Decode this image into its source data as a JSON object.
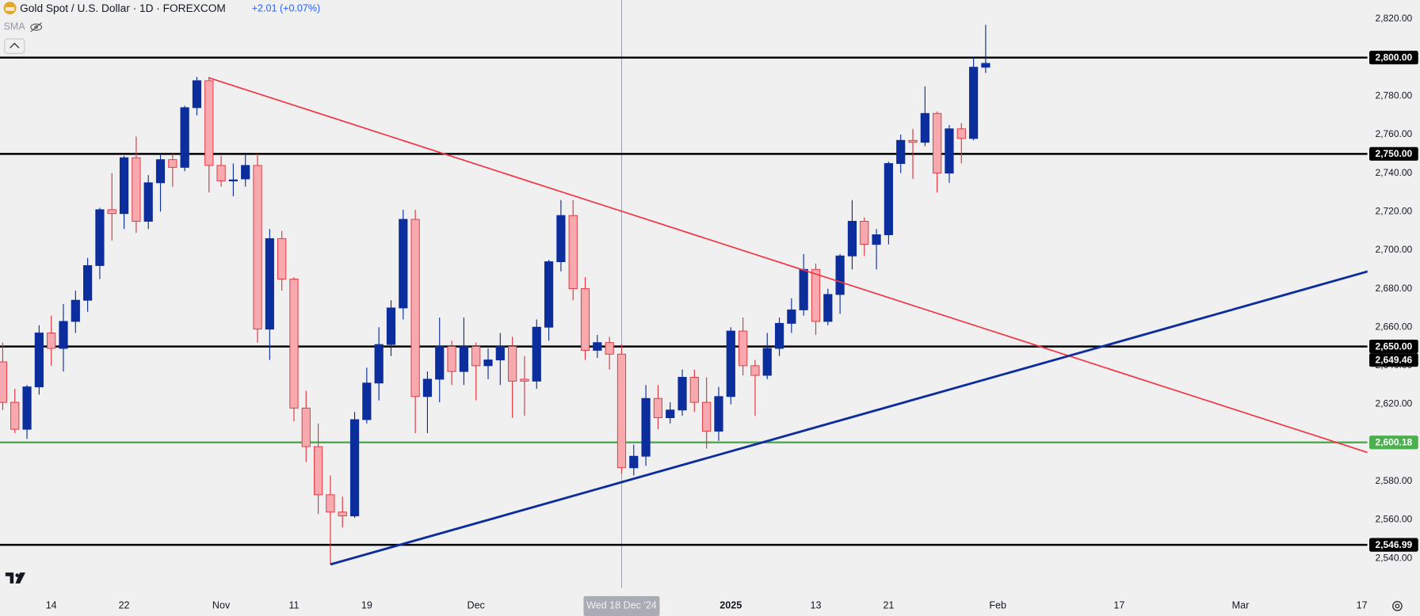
{
  "chart_data": {
    "type": "candlestick",
    "title": "Gold Spot / U.S. Dollar · 1D · FOREXCOM",
    "change_label": "+2.01 (+0.07%)",
    "indicator_label": "SMA",
    "up_color": "#0c2d9c",
    "down_color": "#f7a9ae",
    "down_border": "#e0323e",
    "x": [
      "2024-10-08",
      "2024-10-09",
      "2024-10-10",
      "2024-10-11",
      "2024-10-14",
      "2024-10-15",
      "2024-10-16",
      "2024-10-17",
      "2024-10-18",
      "2024-10-21",
      "2024-10-22",
      "2024-10-23",
      "2024-10-24",
      "2024-10-25",
      "2024-10-28",
      "2024-10-29",
      "2024-10-30",
      "2024-10-31",
      "2024-11-01",
      "2024-11-04",
      "2024-11-05",
      "2024-11-06",
      "2024-11-07",
      "2024-11-08",
      "2024-11-11",
      "2024-11-12",
      "2024-11-13",
      "2024-11-14",
      "2024-11-15",
      "2024-11-18",
      "2024-11-19",
      "2024-11-20",
      "2024-11-21",
      "2024-11-22",
      "2024-11-25",
      "2024-11-26",
      "2024-11-27",
      "2024-11-28",
      "2024-11-29",
      "2024-12-02",
      "2024-12-03",
      "2024-12-04",
      "2024-12-05",
      "2024-12-06",
      "2024-12-09",
      "2024-12-10",
      "2024-12-11",
      "2024-12-12",
      "2024-12-13",
      "2024-12-16",
      "2024-12-17",
      "2024-12-18",
      "2024-12-19",
      "2024-12-20",
      "2024-12-23",
      "2024-12-24",
      "2024-12-26",
      "2024-12-27",
      "2024-12-30",
      "2024-12-31",
      "2025-01-02",
      "2025-01-03",
      "2025-01-06",
      "2025-01-07",
      "2025-01-08",
      "2025-01-09",
      "2025-01-10",
      "2025-01-13",
      "2025-01-14",
      "2025-01-15",
      "2025-01-16",
      "2025-01-17",
      "2025-01-20",
      "2025-01-21",
      "2025-01-22",
      "2025-01-23",
      "2025-01-24",
      "2025-01-27",
      "2025-01-28",
      "2025-01-29",
      "2025-01-30",
      "2025-01-31"
    ],
    "open": [
      2642,
      2621,
      2607,
      2629,
      2657,
      2649,
      2663,
      2674,
      2692,
      2721,
      2719,
      2748,
      2715,
      2735,
      2747,
      2743,
      2774,
      2788,
      2744,
      2736,
      2737,
      2744,
      2659,
      2706,
      2685,
      2618,
      2598,
      2573,
      2564,
      2562,
      2612,
      2631,
      2651,
      2670,
      2716,
      2624,
      2633,
      2650,
      2637,
      2650,
      2640,
      2643,
      2650,
      2633,
      2632,
      2660,
      2694,
      2718,
      2680,
      2648,
      2652,
      2646,
      2587,
      2593,
      2623,
      2613,
      2617,
      2634,
      2621,
      2606,
      2624,
      2658,
      2640,
      2635,
      2649,
      2662,
      2669,
      2690,
      2663,
      2677,
      2697,
      2715,
      2703,
      2708,
      2745,
      2757,
      2756,
      2771,
      2740,
      2763,
      2758,
      2795
    ],
    "high": [
      2652,
      2628,
      2630,
      2661,
      2666,
      2672,
      2679,
      2696,
      2722,
      2740,
      2749,
      2759,
      2739,
      2750,
      2750,
      2775,
      2790,
      2790,
      2749,
      2745,
      2750,
      2750,
      2711,
      2710,
      2686,
      2627,
      2610,
      2583,
      2572,
      2616,
      2639,
      2660,
      2674,
      2721,
      2721,
      2637,
      2665,
      2653,
      2665,
      2652,
      2649,
      2657,
      2655,
      2645,
      2664,
      2695,
      2726,
      2726,
      2686,
      2656,
      2655,
      2651,
      2599,
      2630,
      2630,
      2621,
      2638,
      2638,
      2634,
      2629,
      2660,
      2665,
      2643,
      2657,
      2665,
      2675,
      2698,
      2693,
      2680,
      2698,
      2726,
      2717,
      2711,
      2746,
      2760,
      2763,
      2785,
      2772,
      2765,
      2766,
      2800,
      2817
    ],
    "low": [
      2617,
      2605,
      2602,
      2625,
      2640,
      2637,
      2657,
      2668,
      2685,
      2705,
      2711,
      2709,
      2711,
      2720,
      2733,
      2741,
      2770,
      2730,
      2733,
      2728,
      2733,
      2652,
      2643,
      2679,
      2611,
      2590,
      2563,
      2537,
      2556,
      2561,
      2610,
      2622,
      2645,
      2664,
      2605,
      2605,
      2621,
      2630,
      2630,
      2622,
      2633,
      2630,
      2613,
      2614,
      2628,
      2653,
      2689,
      2674,
      2643,
      2644,
      2638,
      2584,
      2583,
      2588,
      2607,
      2610,
      2614,
      2616,
      2597,
      2601,
      2620,
      2635,
      2614,
      2633,
      2645,
      2657,
      2666,
      2656,
      2661,
      2667,
      2690,
      2697,
      2690,
      2703,
      2740,
      2737,
      2754,
      2730,
      2735,
      2745,
      2757,
      2792
    ],
    "close": [
      2621,
      2607,
      2629,
      2657,
      2649,
      2663,
      2674,
      2692,
      2721,
      2719,
      2748,
      2715,
      2735,
      2747,
      2743,
      2774,
      2788,
      2744,
      2736,
      2736.5,
      2744,
      2659,
      2706,
      2685,
      2618,
      2598,
      2573,
      2564,
      2562,
      2612,
      2631,
      2651,
      2670,
      2716,
      2624,
      2633,
      2650,
      2637,
      2650,
      2640,
      2643,
      2650,
      2632,
      2632,
      2660,
      2694,
      2718,
      2680,
      2648,
      2652,
      2646,
      2587,
      2593,
      2623,
      2613,
      2617,
      2634,
      2621,
      2606,
      2624,
      2658,
      2640,
      2635,
      2649,
      2662,
      2669,
      2690,
      2663,
      2677,
      2697,
      2715,
      2703,
      2708,
      2745,
      2757,
      2756,
      2771,
      2740,
      2763,
      2758,
      2795,
      2797
    ],
    "ylim": [
      2524.6,
      2829.9
    ],
    "yticks": [
      {
        "value": 2540,
        "label": "2,540.00"
      },
      {
        "value": 2560,
        "label": "2,560.00"
      },
      {
        "value": 2580,
        "label": "2,580.00"
      },
      {
        "value": 2600,
        "label": "2,600.00"
      },
      {
        "value": 2620,
        "label": "2,620.00"
      },
      {
        "value": 2640,
        "label": "2,640.00"
      },
      {
        "value": 2660,
        "label": "2,660.00"
      },
      {
        "value": 2680,
        "label": "2,680.00"
      },
      {
        "value": 2700,
        "label": "2,700.00"
      },
      {
        "value": 2720,
        "label": "2,720.00"
      },
      {
        "value": 2740,
        "label": "2,740.00"
      },
      {
        "value": 2760,
        "label": "2,760.00"
      },
      {
        "value": 2780,
        "label": "2,780.00"
      },
      {
        "value": 2800,
        "label": "2,800.00"
      },
      {
        "value": 2820,
        "label": "2,820.00"
      }
    ],
    "xticks": [
      {
        "value": "2024-10-14",
        "label": "14"
      },
      {
        "value": "2024-10-22",
        "label": "22"
      },
      {
        "value": "2024-11-01",
        "label": "Nov"
      },
      {
        "value": "2024-11-11",
        "label": "11"
      },
      {
        "value": "2024-11-19",
        "label": "19"
      },
      {
        "value": "2024-12-02",
        "label": "Dec"
      },
      {
        "value": "2025-01-02",
        "label": "2025"
      },
      {
        "value": "2025-01-13",
        "label": "13"
      },
      {
        "value": "2025-01-21",
        "label": "21"
      },
      {
        "value": "2025-02-03",
        "label": "Feb"
      },
      {
        "value": "2025-02-17",
        "label": "17"
      },
      {
        "value": "2025-03-03",
        "label": "Mar"
      },
      {
        "value": "2025-03-17",
        "label": "17"
      }
    ],
    "levels": [
      {
        "value": 2800,
        "label": "2,800.00",
        "color": "#000000",
        "line": true
      },
      {
        "value": 2750,
        "label": "2,750.00",
        "color": "#000000",
        "line": true
      },
      {
        "value": 2650,
        "label": "2,650.00",
        "color": "#000000",
        "line": true
      },
      {
        "value": 2649.46,
        "label": "2,649.46",
        "color": "#000000",
        "line": false
      },
      {
        "value": 2600.18,
        "label": "2,600.18",
        "color": "#4caf50",
        "line": true
      },
      {
        "value": 2546.99,
        "label": "2,546.99",
        "color": "#000000",
        "line": true
      }
    ],
    "trendlines": [
      {
        "color": "#f23645",
        "x": [
          "2024-10-31",
          "2024-12-11"
        ],
        "y": [
          2789.5,
          2730.4
        ]
      },
      {
        "color": "#0d2d9b",
        "x": [
          "2024-11-14",
          "2024-12-19"
        ],
        "y": [
          2536.8,
          2581.3
        ]
      }
    ],
    "crosshair": {
      "x": "2024-12-18",
      "label": "Wed 18 Dec '24"
    }
  }
}
